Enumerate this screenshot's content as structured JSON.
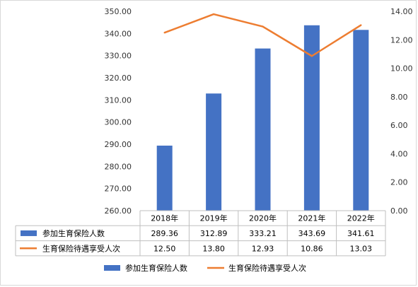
{
  "chart_data": {
    "type": "bar",
    "title": "",
    "categories": [
      "2018年",
      "2019年",
      "2020年",
      "2021年",
      "2022年"
    ],
    "y_left": {
      "min": 260,
      "max": 350,
      "ticks": [
        "260.00",
        "270.00",
        "280.00",
        "290.00",
        "300.00",
        "310.00",
        "320.00",
        "330.00",
        "340.00",
        "350.00"
      ]
    },
    "y_right": {
      "min": 0,
      "max": 14,
      "ticks": [
        "0.00",
        "2.00",
        "4.00",
        "6.00",
        "8.00",
        "10.00",
        "12.00",
        "14.00"
      ]
    },
    "series": [
      {
        "name": "参加生育保险人数",
        "kind": "bar",
        "axis": "left",
        "color": "#4472c4",
        "values": [
          289.36,
          312.89,
          333.21,
          343.69,
          341.61
        ],
        "labels": [
          "289.36",
          "312.89",
          "333.21",
          "343.69",
          "341.61"
        ]
      },
      {
        "name": "生育保险待遇享受人次",
        "kind": "line",
        "axis": "right",
        "color": "#ed7d31",
        "values": [
          12.5,
          13.8,
          12.93,
          10.86,
          13.03
        ],
        "labels": [
          "12.50",
          "13.80",
          "12.93",
          "10.86",
          "13.03"
        ]
      }
    ],
    "data_table": true,
    "legend_position": "bottom",
    "grid": false
  }
}
